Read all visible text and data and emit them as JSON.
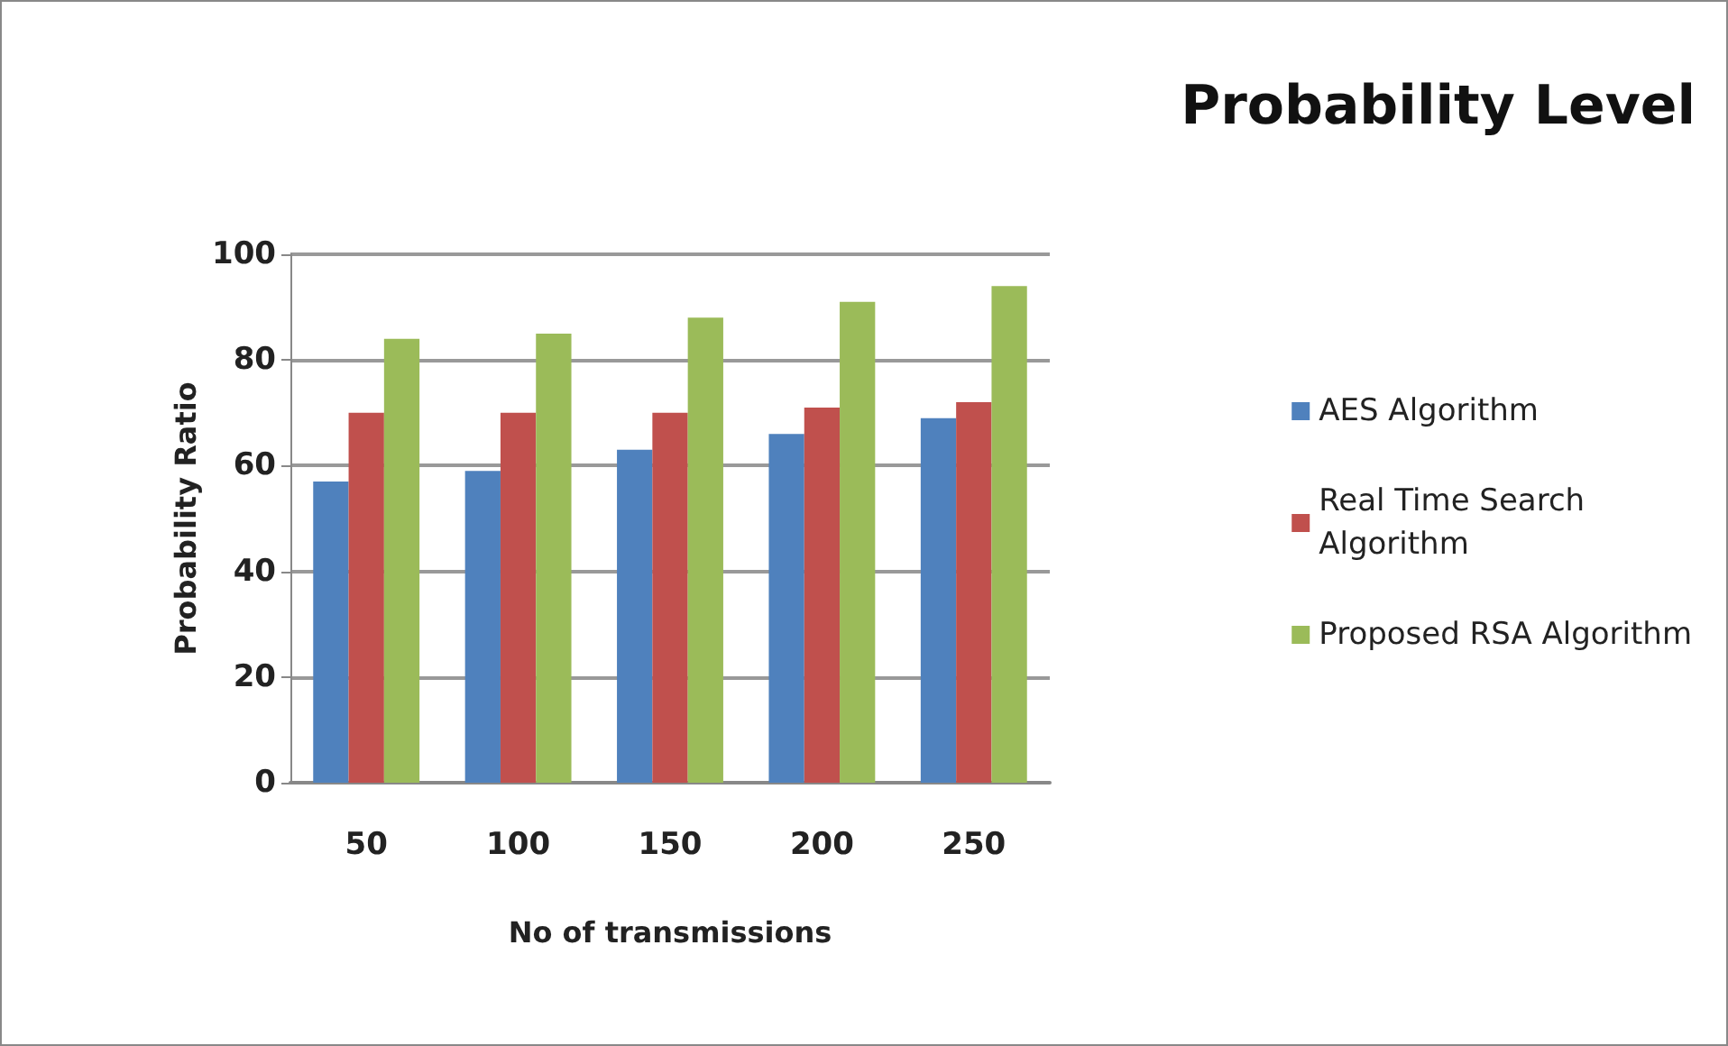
{
  "chart_data": {
    "type": "bar",
    "title": "Probability Level",
    "xlabel": "No of transmissions",
    "ylabel": "Probability Ratio",
    "categories": [
      "50",
      "100",
      "150",
      "200",
      "250"
    ],
    "series": [
      {
        "name": "AES Algorithm",
        "color": "#4f81bd",
        "values": [
          57,
          59,
          63,
          66,
          69
        ]
      },
      {
        "name": "Real Time Search\nAlgorithm",
        "color": "#c0504d",
        "values": [
          70,
          70,
          70,
          71,
          72
        ]
      },
      {
        "name": "Proposed RSA Algorithm",
        "color": "#9bbb59",
        "values": [
          84,
          85,
          88,
          91,
          94
        ]
      }
    ],
    "ylim": [
      0,
      100
    ],
    "yticks": [
      0,
      20,
      40,
      60,
      80,
      100
    ],
    "grid": "y",
    "legend": "right"
  }
}
